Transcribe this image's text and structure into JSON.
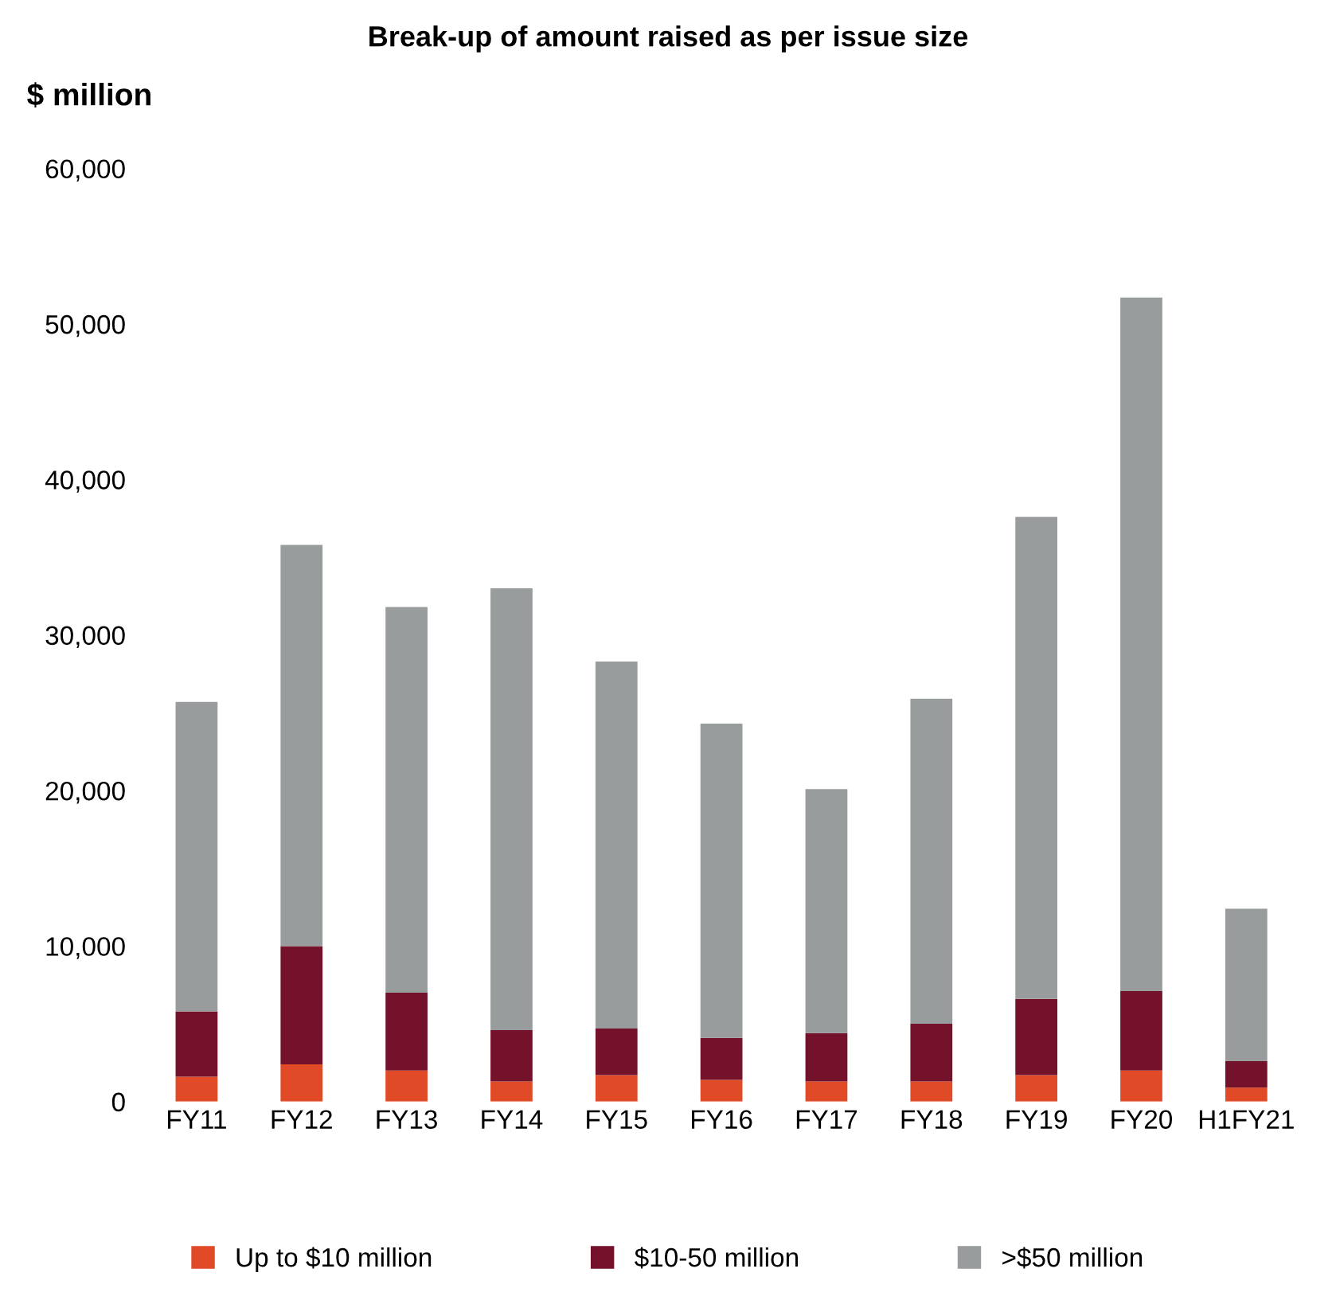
{
  "chart_data": {
    "type": "bar",
    "title": "Break-up of amount raised as per issue size",
    "ylabel": "$ million",
    "stacked": true,
    "grid": false,
    "legend": "bottom",
    "categories": [
      "FY11",
      "FY12",
      "FY13",
      "FY14",
      "FY15",
      "FY16",
      "FY17",
      "FY18",
      "FY19",
      "FY20",
      "H1FY21"
    ],
    "ylim": [
      0,
      60000
    ],
    "yticks": [
      {
        "value": 0,
        "label": "0"
      },
      {
        "value": 10000,
        "label": "10,000"
      },
      {
        "value": 20000,
        "label": "20,000"
      },
      {
        "value": 30000,
        "label": "30,000"
      },
      {
        "value": 40000,
        "label": "40,000"
      },
      {
        "value": 50000,
        "label": "50,000"
      },
      {
        "value": 60000,
        "label": "60,000"
      }
    ],
    "series": [
      {
        "name": "Up to $10 million",
        "color": "#e04a26",
        "values": [
          1600,
          2400,
          2000,
          1300,
          1700,
          1400,
          1300,
          1300,
          1700,
          2000,
          900
        ]
      },
      {
        "name": "$10-50 million",
        "color": "#73122a",
        "values": [
          4200,
          7600,
          5000,
          3300,
          3000,
          2700,
          3100,
          3700,
          4900,
          5100,
          1700
        ]
      },
      {
        "name": ">$50 million",
        "color": "#999c9c",
        "values": [
          19900,
          25800,
          24800,
          28400,
          23600,
          20200,
          15700,
          20900,
          31000,
          44600,
          9800
        ]
      }
    ]
  }
}
